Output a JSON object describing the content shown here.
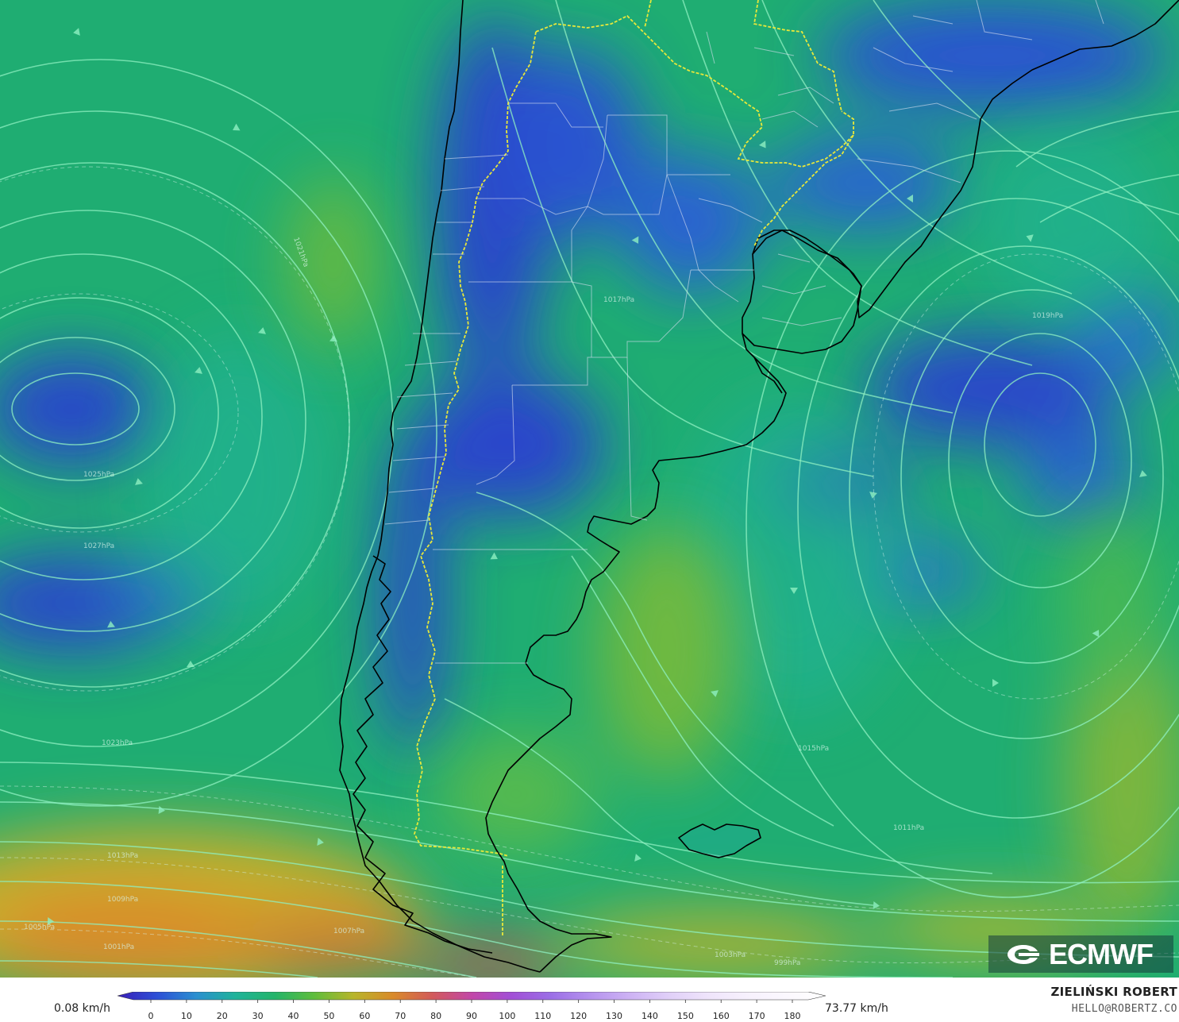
{
  "map": {
    "isobar_labels": [
      "1027hPa",
      "1025hPa",
      "1023hPa",
      "1021hPa",
      "1019hPa",
      "1017hPa",
      "1015hPa",
      "1013hPa",
      "1011hPa",
      "1009hPa",
      "1007hPa",
      "1005hPa",
      "1003hPa",
      "1001hPa",
      "999hPa"
    ]
  },
  "legend": {
    "min_label": "0.08 km/h",
    "max_label": "73.77 km/h",
    "ticks": [
      "0",
      "10",
      "20",
      "30",
      "40",
      "50",
      "60",
      "70",
      "80",
      "90",
      "100",
      "110",
      "120",
      "130",
      "140",
      "150",
      "160",
      "170",
      "180"
    ],
    "colors": [
      "#3a1fb8",
      "#2d4fd6",
      "#2a8fd0",
      "#1fb39a",
      "#24b46a",
      "#5fbd3c",
      "#b8b52a",
      "#d98a2a",
      "#d25a5a",
      "#c247a8",
      "#a24fd6",
      "#9b6ee6",
      "#b592ee",
      "#cdb2f4",
      "#e0cff8",
      "#efe4fb",
      "#f7f1fd",
      "#fbf8fe",
      "#ffffff"
    ]
  },
  "credits": {
    "author": "ZIELIŃSKI ROBERT",
    "email": "HELLO@ROBERTZ.CO",
    "brand": "ECMWF"
  }
}
